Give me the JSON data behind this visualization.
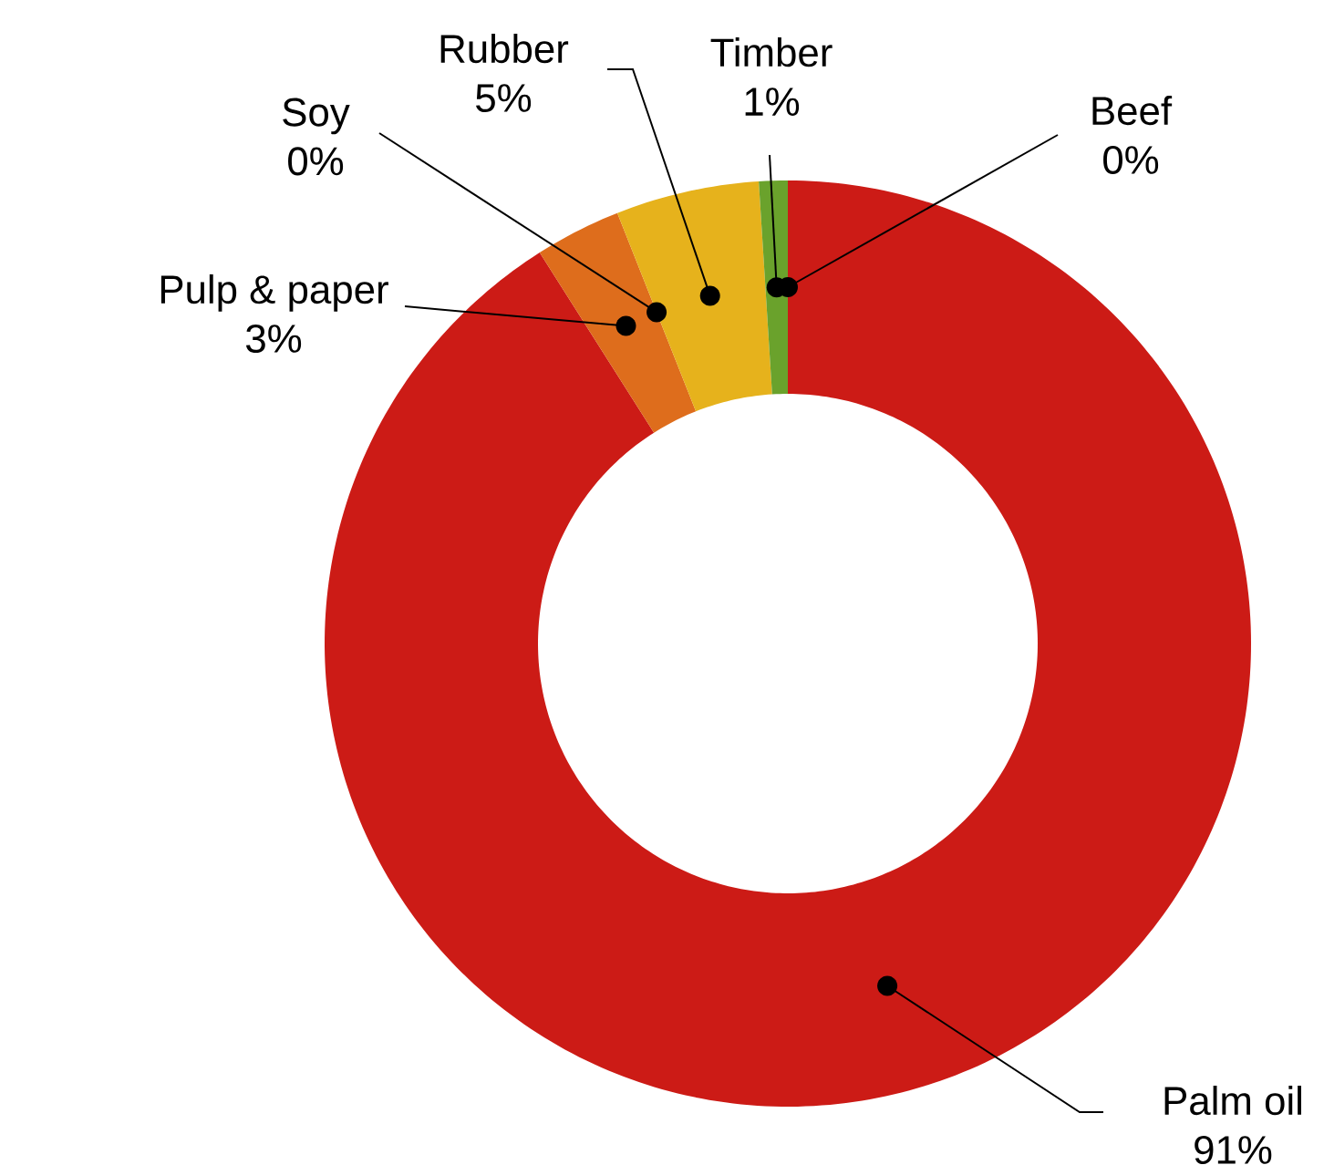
{
  "chart_data": {
    "type": "donut",
    "categories": [
      "Palm oil",
      "Pulp & paper",
      "Soy",
      "Rubber",
      "Timber",
      "Beef"
    ],
    "values": [
      91,
      3,
      0,
      5,
      1,
      0
    ],
    "colors": [
      "#cc1b16",
      "#de6d1c",
      "#b8561c",
      "#e6b21c",
      "#6aa22c",
      "#a8402a"
    ],
    "value_labels": [
      "91%",
      "3%",
      "0%",
      "5%",
      "1%",
      "0%"
    ]
  }
}
